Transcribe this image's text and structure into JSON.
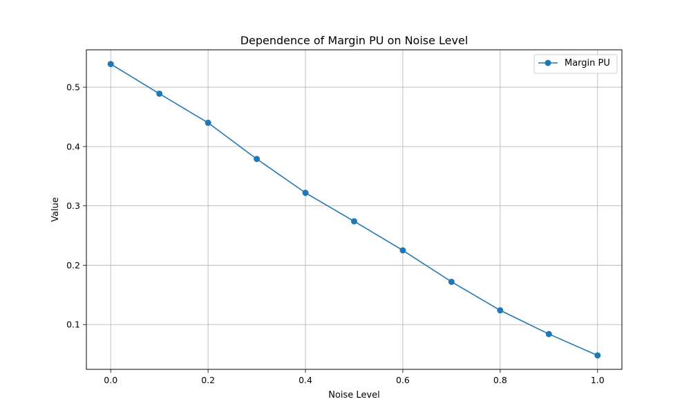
{
  "chart_data": {
    "type": "line",
    "title": "Dependence of Margin PU on Noise Level",
    "xlabel": "Noise Level",
    "ylabel": "Value",
    "xlim": [
      -0.05,
      1.05
    ],
    "ylim": [
      0.0245,
      0.563
    ],
    "xticks": [
      0.0,
      0.2,
      0.4,
      0.6,
      0.8,
      1.0
    ],
    "xtick_labels": [
      "0.0",
      "0.2",
      "0.4",
      "0.6",
      "0.8",
      "1.0"
    ],
    "yticks": [
      0.1,
      0.2,
      0.3,
      0.4,
      0.5
    ],
    "ytick_labels": [
      "0.1",
      "0.2",
      "0.3",
      "0.4",
      "0.5"
    ],
    "grid": true,
    "legend": {
      "placement": "top-right",
      "entries": [
        "Margin PU"
      ]
    },
    "series": [
      {
        "name": "Margin PU",
        "color": "#1f77b4",
        "marker": "circle",
        "x": [
          0.0,
          0.1,
          0.2,
          0.3,
          0.4,
          0.5,
          0.6,
          0.7,
          0.8,
          0.9,
          1.0
        ],
        "y": [
          0.539,
          0.489,
          0.44,
          0.379,
          0.322,
          0.274,
          0.225,
          0.172,
          0.124,
          0.084,
          0.048
        ]
      }
    ]
  }
}
